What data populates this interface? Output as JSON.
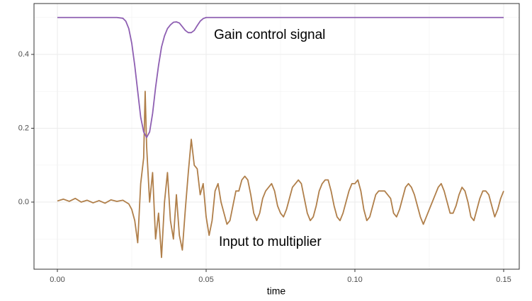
{
  "chart_data": {
    "type": "line",
    "xlabel": "time",
    "xlim": [
      -0.00786,
      0.15524
    ],
    "ylim": [
      -0.1818,
      0.5378
    ],
    "xticks": [
      {
        "value": 0,
        "label": "0.00"
      },
      {
        "value": 0.05,
        "label": "0.05"
      },
      {
        "value": 0.1,
        "label": "0.10"
      },
      {
        "value": 0.15,
        "label": "0.15"
      }
    ],
    "yticks": [
      {
        "value": 0,
        "label": "0.0"
      },
      {
        "value": 0.2,
        "label": "0.2"
      },
      {
        "value": 0.4,
        "label": "0.4"
      }
    ],
    "x_minor_grid": [
      0.025,
      0.075,
      0.125
    ],
    "y_minor_grid": [
      -0.1,
      0.1,
      0.3,
      0.5
    ],
    "grid": true,
    "series": [
      {
        "name": "Input to multiplier",
        "color": "#b07f4a",
        "x": [
          0,
          0.002,
          0.004,
          0.006,
          0.008,
          0.01,
          0.012,
          0.014,
          0.016,
          0.018,
          0.02,
          0.022,
          0.024,
          0.025,
          0.026,
          0.027,
          0.028,
          0.029,
          0.0295,
          0.03,
          0.031,
          0.032,
          0.033,
          0.034,
          0.035,
          0.036,
          0.037,
          0.038,
          0.039,
          0.04,
          0.041,
          0.042,
          0.043,
          0.044,
          0.045,
          0.046,
          0.047,
          0.048,
          0.049,
          0.05,
          0.051,
          0.052,
          0.053,
          0.054,
          0.055,
          0.056,
          0.057,
          0.058,
          0.059,
          0.06,
          0.061,
          0.062,
          0.063,
          0.064,
          0.065,
          0.066,
          0.067,
          0.068,
          0.069,
          0.07,
          0.071,
          0.072,
          0.073,
          0.074,
          0.075,
          0.076,
          0.077,
          0.078,
          0.079,
          0.08,
          0.081,
          0.082,
          0.083,
          0.084,
          0.085,
          0.086,
          0.087,
          0.088,
          0.089,
          0.09,
          0.091,
          0.092,
          0.093,
          0.094,
          0.095,
          0.096,
          0.097,
          0.098,
          0.099,
          0.1,
          0.101,
          0.102,
          0.103,
          0.104,
          0.105,
          0.106,
          0.107,
          0.108,
          0.109,
          0.11,
          0.111,
          0.112,
          0.113,
          0.114,
          0.115,
          0.116,
          0.117,
          0.118,
          0.119,
          0.12,
          0.121,
          0.122,
          0.123,
          0.124,
          0.125,
          0.126,
          0.127,
          0.128,
          0.129,
          0.13,
          0.131,
          0.132,
          0.133,
          0.134,
          0.135,
          0.136,
          0.137,
          0.138,
          0.139,
          0.14,
          0.141,
          0.142,
          0.143,
          0.144,
          0.145,
          0.146,
          0.147,
          0.148,
          0.149,
          0.15
        ],
        "values": [
          0.003,
          0.008,
          0.002,
          0.01,
          0,
          0.005,
          -0.002,
          0.004,
          -0.003,
          0.006,
          0.002,
          0.005,
          -0.005,
          -0.02,
          -0.05,
          -0.11,
          0.05,
          0.12,
          0.3,
          0.15,
          0,
          0.08,
          -0.1,
          -0.03,
          -0.15,
          0,
          0.08,
          -0.05,
          -0.1,
          0.02,
          -0.09,
          -0.13,
          -0.02,
          0.08,
          0.17,
          0.1,
          0.09,
          0.02,
          0.05,
          -0.04,
          -0.09,
          -0.05,
          0.03,
          0.05,
          0,
          -0.03,
          -0.06,
          -0.05,
          -0.01,
          0.03,
          0.03,
          0.06,
          0.07,
          0.06,
          0.02,
          -0.03,
          -0.05,
          -0.03,
          0.01,
          0.03,
          0.04,
          0.05,
          0.03,
          -0.01,
          -0.03,
          -0.04,
          -0.02,
          0.01,
          0.04,
          0.05,
          0.06,
          0.05,
          0.01,
          -0.03,
          -0.05,
          -0.04,
          -0.01,
          0.03,
          0.05,
          0.06,
          0.06,
          0.03,
          -0.01,
          -0.04,
          -0.05,
          -0.03,
          0,
          0.03,
          0.05,
          0.05,
          0.06,
          0.03,
          -0.02,
          -0.05,
          -0.04,
          -0.01,
          0.02,
          0.03,
          0.03,
          0.03,
          0.02,
          0.01,
          -0.03,
          -0.04,
          -0.02,
          0.01,
          0.04,
          0.05,
          0.04,
          0.02,
          -0.01,
          -0.04,
          -0.06,
          -0.04,
          -0.02,
          0,
          0.02,
          0.04,
          0.05,
          0.03,
          0,
          -0.03,
          -0.03,
          -0.01,
          0.02,
          0.04,
          0.03,
          0,
          -0.04,
          -0.05,
          -0.02,
          0.01,
          0.03,
          0.03,
          0.02,
          -0.01,
          -0.04,
          -0.02,
          0.01,
          0.03
        ]
      },
      {
        "name": "Gain control signal",
        "color": "#8e5fb2",
        "x": [
          0,
          0.02,
          0.022,
          0.023,
          0.024,
          0.025,
          0.026,
          0.027,
          0.028,
          0.029,
          0.03,
          0.031,
          0.032,
          0.033,
          0.034,
          0.035,
          0.036,
          0.037,
          0.038,
          0.039,
          0.04,
          0.041,
          0.042,
          0.043,
          0.044,
          0.045,
          0.046,
          0.047,
          0.048,
          0.049,
          0.05,
          0.15
        ],
        "values": [
          0.5,
          0.5,
          0.498,
          0.49,
          0.47,
          0.43,
          0.37,
          0.3,
          0.23,
          0.19,
          0.175,
          0.19,
          0.24,
          0.31,
          0.37,
          0.42,
          0.45,
          0.47,
          0.48,
          0.487,
          0.488,
          0.485,
          0.475,
          0.465,
          0.459,
          0.459,
          0.465,
          0.478,
          0.49,
          0.497,
          0.5,
          0.5
        ]
      }
    ]
  }
}
